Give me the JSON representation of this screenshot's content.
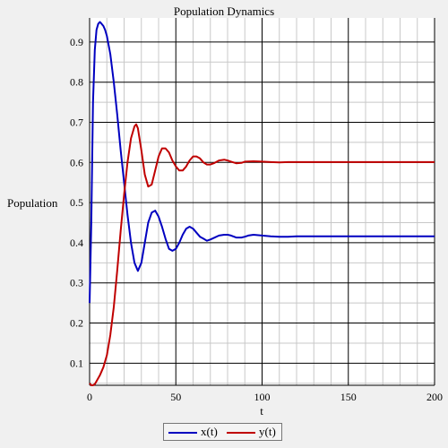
{
  "chart_data": {
    "type": "line",
    "title": "Population Dynamics",
    "xlabel": "t",
    "ylabel": "Population",
    "xlim": [
      0,
      200
    ],
    "ylim": [
      0.045,
      0.96
    ],
    "x_ticks": [
      50,
      100,
      150,
      200
    ],
    "y_ticks": [
      0.1,
      0.2,
      0.3,
      0.4,
      0.5,
      0.6,
      0.7,
      0.8,
      0.9
    ],
    "grid": true,
    "legend_position": "bottom",
    "series": [
      {
        "name": "x(t)",
        "color": "#0000c0",
        "x": [
          0,
          1,
          2,
          3,
          4,
          5,
          6,
          7,
          8,
          9,
          10,
          12,
          14,
          16,
          18,
          20,
          22,
          24,
          26,
          28,
          30,
          32,
          34,
          36,
          38,
          40,
          42,
          44,
          46,
          48,
          50,
          52,
          54,
          56,
          58,
          60,
          62,
          64,
          66,
          68,
          70,
          72,
          75,
          78,
          80,
          82,
          85,
          88,
          90,
          92,
          95,
          100,
          105,
          110,
          115,
          120,
          130,
          140,
          150,
          160,
          170,
          180,
          190,
          200
        ],
        "y": [
          0.25,
          0.45,
          0.75,
          0.88,
          0.93,
          0.945,
          0.95,
          0.945,
          0.94,
          0.93,
          0.915,
          0.87,
          0.8,
          0.72,
          0.63,
          0.55,
          0.47,
          0.4,
          0.35,
          0.33,
          0.35,
          0.4,
          0.45,
          0.475,
          0.48,
          0.465,
          0.44,
          0.41,
          0.385,
          0.38,
          0.385,
          0.4,
          0.42,
          0.435,
          0.44,
          0.435,
          0.425,
          0.415,
          0.41,
          0.405,
          0.408,
          0.412,
          0.418,
          0.42,
          0.42,
          0.418,
          0.413,
          0.413,
          0.415,
          0.418,
          0.42,
          0.418,
          0.416,
          0.415,
          0.415,
          0.416,
          0.416,
          0.416,
          0.416,
          0.416,
          0.416,
          0.416,
          0.416,
          0.416
        ]
      },
      {
        "name": "y(t)",
        "color": "#c00000",
        "x": [
          0,
          1,
          2,
          3,
          4,
          6,
          8,
          10,
          12,
          14,
          16,
          18,
          20,
          22,
          24,
          26,
          27,
          28,
          30,
          32,
          34,
          36,
          38,
          40,
          42,
          44,
          46,
          48,
          50,
          52,
          54,
          56,
          58,
          60,
          62,
          64,
          66,
          68,
          70,
          72,
          75,
          78,
          80,
          82,
          85,
          88,
          90,
          95,
          100,
          105,
          110,
          115,
          120,
          130,
          150,
          170,
          200
        ],
        "y": [
          0.05,
          0.045,
          0.045,
          0.048,
          0.055,
          0.07,
          0.09,
          0.12,
          0.17,
          0.24,
          0.33,
          0.43,
          0.52,
          0.6,
          0.66,
          0.69,
          0.695,
          0.685,
          0.63,
          0.57,
          0.54,
          0.545,
          0.58,
          0.615,
          0.635,
          0.635,
          0.625,
          0.605,
          0.59,
          0.58,
          0.58,
          0.59,
          0.605,
          0.615,
          0.615,
          0.61,
          0.6,
          0.595,
          0.595,
          0.598,
          0.605,
          0.607,
          0.605,
          0.602,
          0.598,
          0.599,
          0.602,
          0.603,
          0.602,
          0.601,
          0.6,
          0.601,
          0.601,
          0.601,
          0.601,
          0.601,
          0.601
        ]
      }
    ]
  }
}
